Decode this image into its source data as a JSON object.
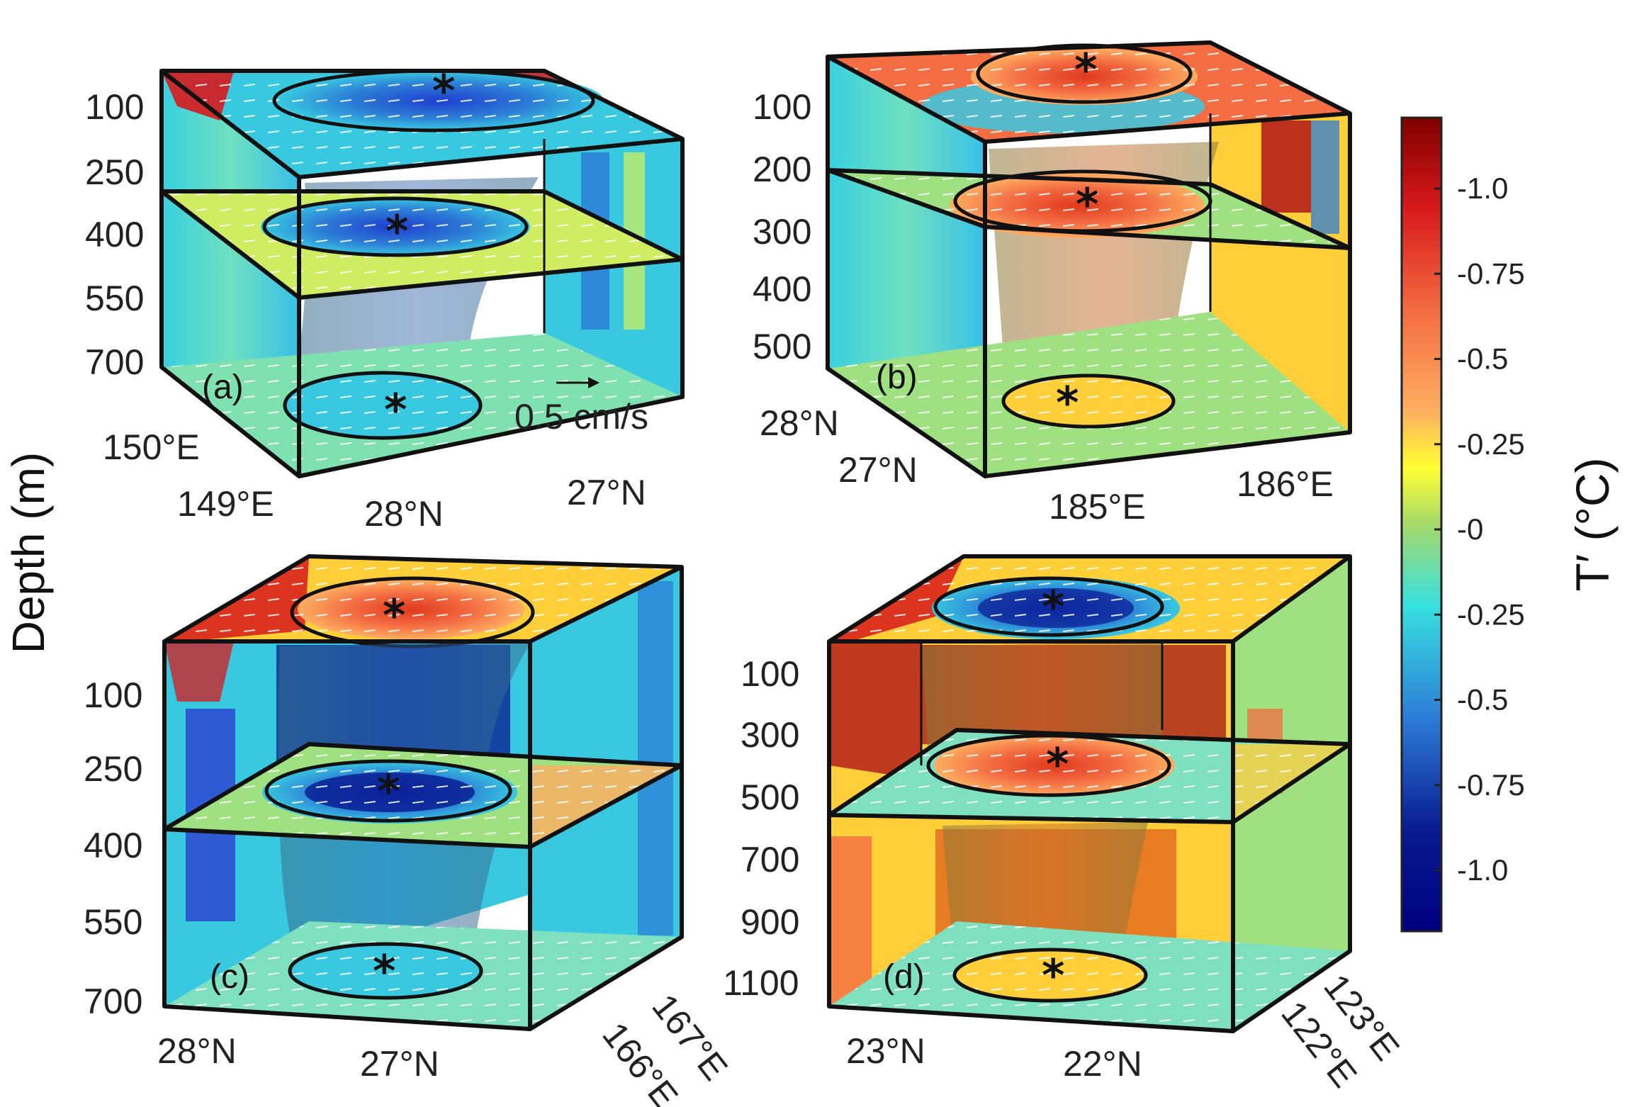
{
  "y_axis_label": "Depth (m)",
  "colorbar": {
    "title": "T′ (°C)",
    "tick_labels": [
      "-1.0",
      "-0.75",
      "-0.5",
      "-0.25",
      "-0",
      "-0.25",
      "-0.5",
      "-0.75",
      "-1.0"
    ],
    "colors_top_to_bottom": [
      "#7f0000",
      "#d7191c",
      "#f46d43",
      "#fdae61",
      "#ffff33",
      "#a6d96a",
      "#38e0e0",
      "#2c7bd6",
      "#08198f",
      "#00007f"
    ]
  },
  "vector_scale_label": "0.5 cm/s",
  "panels": [
    {
      "label": "(a)",
      "depth_ticks": [
        "100",
        "250",
        "400",
        "550",
        "700"
      ],
      "lat_lon_ticks": [
        "150°E",
        "149°E",
        "28°N",
        "27°N"
      ],
      "anomaly": "cold"
    },
    {
      "label": "(b)",
      "depth_ticks": [
        "100",
        "200",
        "300",
        "400",
        "500"
      ],
      "lat_lon_ticks": [
        "28°N",
        "27°N",
        "185°E",
        "186°E"
      ],
      "anomaly": "warm"
    },
    {
      "label": "(c)",
      "depth_ticks": [
        "100",
        "250",
        "400",
        "550",
        "700"
      ],
      "lat_lon_ticks": [
        "28°N",
        "27°N",
        "167°E",
        "166°E"
      ],
      "anomaly": "cold"
    },
    {
      "label": "(d)",
      "depth_ticks": [
        "100",
        "300",
        "500",
        "700",
        "900",
        "1100"
      ],
      "lat_lon_ticks": [
        "23°N",
        "22°N",
        "123°E",
        "122°E"
      ],
      "anomaly": "warm"
    }
  ],
  "center_marker": "*"
}
